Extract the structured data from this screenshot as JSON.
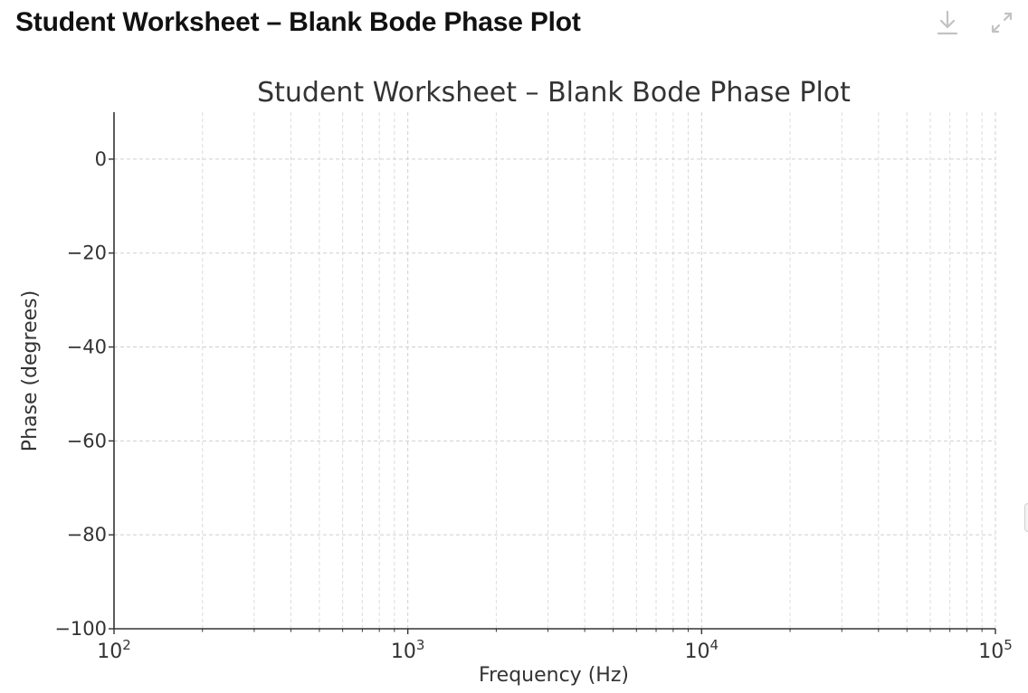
{
  "header": {
    "title": "Student Worksheet – Blank Bode Phase Plot",
    "download_icon": "download-icon",
    "expand_icon": "expand-icon"
  },
  "chart_data": {
    "type": "line",
    "title": "Student Worksheet – Blank Bode Phase Plot",
    "xlabel": "Frequency (Hz)",
    "ylabel": "Phase (degrees)",
    "xscale": "log",
    "xlim": [
      100,
      100000
    ],
    "ylim": [
      -100,
      10
    ],
    "x_ticks": [
      {
        "value": 100,
        "base": "10",
        "exp": "2"
      },
      {
        "value": 1000,
        "base": "10",
        "exp": "3"
      },
      {
        "value": 10000,
        "base": "10",
        "exp": "4"
      },
      {
        "value": 100000,
        "base": "10",
        "exp": "5"
      }
    ],
    "y_ticks": [
      {
        "value": 0,
        "label": "0"
      },
      {
        "value": -20,
        "label": "−20"
      },
      {
        "value": -40,
        "label": "−40"
      },
      {
        "value": -60,
        "label": "−60"
      },
      {
        "value": -80,
        "label": "−80"
      },
      {
        "value": -100,
        "label": "−100"
      }
    ],
    "grid": {
      "major": true,
      "minor": true,
      "style": "dashed"
    },
    "series": []
  }
}
